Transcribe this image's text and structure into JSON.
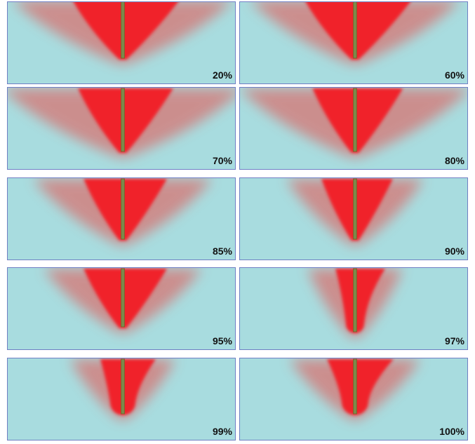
{
  "panels": [
    {
      "label": "20%"
    },
    {
      "label": "60%"
    },
    {
      "label": "70%"
    },
    {
      "label": "80%"
    },
    {
      "label": "85%"
    },
    {
      "label": "90%"
    },
    {
      "label": "95%"
    },
    {
      "label": "97%"
    },
    {
      "label": "99%"
    },
    {
      "label": "100%"
    }
  ]
}
